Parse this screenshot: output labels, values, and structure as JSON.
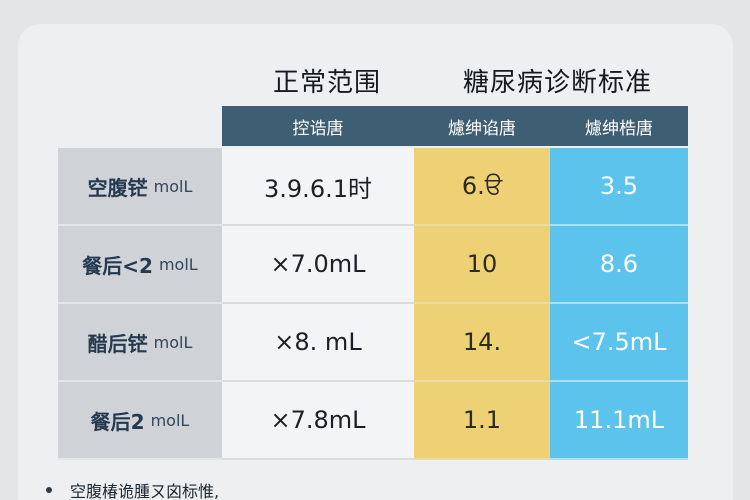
{
  "headers": {
    "normal_range": "正常范围",
    "diabetes_criteria": "糖尿病诊断标准"
  },
  "subheaders": [
    "控诰唐",
    "爈绅谄唐",
    "爈绅梏唐"
  ],
  "rows": [
    {
      "label": "空腹铓",
      "unit": "molL",
      "normal": "3.9.6.1时",
      "yellow": "6.ੳ",
      "blue": "3.5"
    },
    {
      "label": "餐后<2",
      "unit": "molL",
      "normal": "×7.0mL",
      "yellow": "10",
      "blue": "8.6"
    },
    {
      "label": "醋后铓",
      "unit": "molL",
      "normal": "×8. mL",
      "yellow": "14.",
      "blue": "<7.5mL"
    },
    {
      "label": "餐后2",
      "unit": "molL",
      "normal": "×7.8mL",
      "yellow": "1.1",
      "blue": "11.1mL"
    }
  ],
  "footnote": "空腹椿诡腫ㄡ囟标惟,",
  "colors": {
    "header_bg": "#3e5e74",
    "label_bg": "#cfd3d7",
    "normal_bg": "#f3f4f5",
    "yellow_bg": "#efd175",
    "blue_bg": "#5cc4ec"
  }
}
